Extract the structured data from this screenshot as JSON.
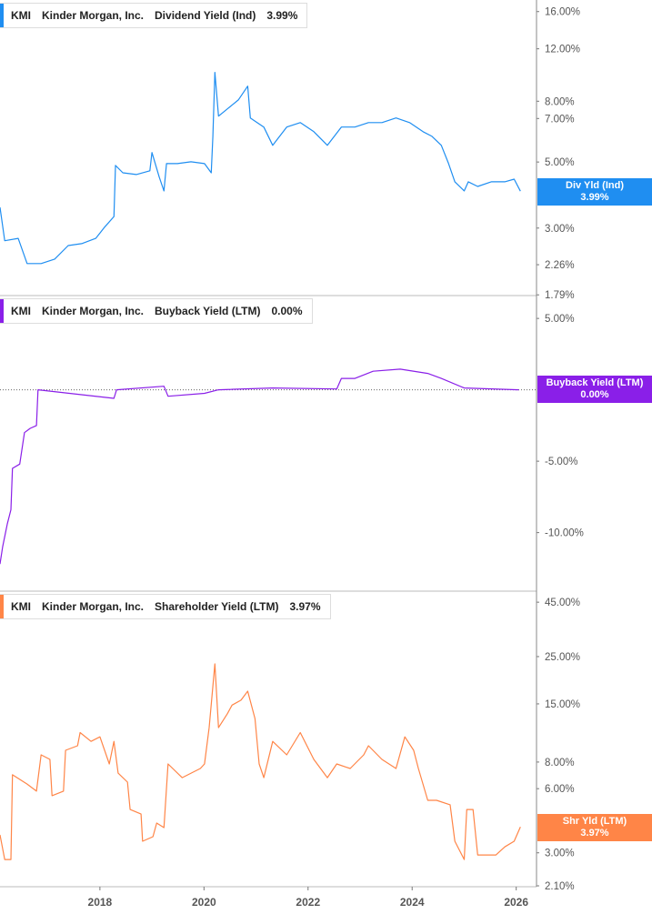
{
  "chart_data": [
    {
      "type": "line",
      "ticker": "KMI",
      "company": "Kinder Morgan, Inc.",
      "title": "Dividend Yield (Ind)",
      "current_value": "3.99%",
      "badge_label": "Div Yld (Ind)",
      "color": "#1f8ef1",
      "scale": "log",
      "ylim": [
        1.78,
        17.5
      ],
      "yticks": [
        16,
        12,
        8,
        7,
        5,
        3,
        2.26,
        1.79
      ],
      "ytick_labels": [
        "16.00%",
        "12.00%",
        "8.00%",
        "7.00%",
        "5.00%",
        "3.00%",
        "2.26%",
        "1.79%"
      ],
      "x": [
        2016.08,
        2016.17,
        2016.43,
        2016.6,
        2016.87,
        2017.13,
        2017.39,
        2017.65,
        2017.92,
        2018.09,
        2018.27,
        2018.3,
        2018.44,
        2018.7,
        2018.96,
        2019.0,
        2019.14,
        2019.23,
        2019.28,
        2019.49,
        2019.75,
        2020.01,
        2020.14,
        2020.17,
        2020.21,
        2020.28,
        2020.45,
        2020.66,
        2020.84,
        2020.89,
        2021.15,
        2021.32,
        2021.59,
        2021.85,
        2022.11,
        2022.37,
        2022.64,
        2022.9,
        2023.16,
        2023.42,
        2023.69,
        2023.95,
        2024.21,
        2024.38,
        2024.56,
        2024.7,
        2024.82,
        2025.0,
        2025.08,
        2025.26,
        2025.52,
        2025.78,
        2025.96,
        2026.08
      ],
      "values": [
        3.52,
        2.72,
        2.77,
        2.28,
        2.28,
        2.36,
        2.62,
        2.66,
        2.77,
        3.02,
        3.28,
        4.87,
        4.6,
        4.54,
        4.67,
        5.38,
        4.45,
        4.0,
        4.94,
        4.94,
        5.01,
        4.94,
        4.6,
        6.1,
        10.0,
        7.13,
        7.54,
        8.08,
        8.99,
        7.03,
        6.55,
        5.69,
        6.55,
        6.78,
        6.32,
        5.69,
        6.55,
        6.55,
        6.78,
        6.78,
        7.03,
        6.78,
        6.32,
        6.1,
        5.69,
        4.94,
        4.29,
        4.0,
        4.29,
        4.14,
        4.29,
        4.29,
        4.38,
        3.99
      ]
    },
    {
      "type": "line",
      "ticker": "KMI",
      "company": "Kinder Morgan, Inc.",
      "title": "Buyback Yield (LTM)",
      "current_value": "0.00%",
      "badge_label": "Buyback Yield (LTM)",
      "color": "#8a1fe8",
      "scale": "linear",
      "ylim": [
        -14.1,
        6.6
      ],
      "yticks": [
        5,
        -5,
        -10
      ],
      "ytick_labels": [
        "5.00%",
        "-5.00%",
        "-10.00%"
      ],
      "reference_line": 0,
      "x": [
        2016.08,
        2016.13,
        2016.22,
        2016.29,
        2016.32,
        2016.46,
        2016.55,
        2016.66,
        2016.78,
        2016.81,
        2018.27,
        2018.32,
        2019.23,
        2019.31,
        2020.01,
        2020.28,
        2021.32,
        2022.55,
        2022.64,
        2022.9,
        2023.25,
        2023.77,
        2024.3,
        2024.56,
        2025.0,
        2026.05
      ],
      "values": [
        -12.2,
        -11.0,
        -9.4,
        -8.4,
        -5.5,
        -5.2,
        -3.0,
        -2.7,
        -2.5,
        0.0,
        -0.6,
        0.0,
        0.25,
        -0.45,
        -0.25,
        0.0,
        0.13,
        0.06,
        0.8,
        0.8,
        1.3,
        1.45,
        1.15,
        0.8,
        0.13,
        0.0
      ]
    },
    {
      "type": "line",
      "ticker": "KMI",
      "company": "Kinder Morgan, Inc.",
      "title": "Shareholder Yield (LTM)",
      "current_value": "3.97%",
      "badge_label": "Shr Yld (LTM)",
      "color": "#ff8547",
      "scale": "log",
      "ylim": [
        2.08,
        50.7
      ],
      "yticks": [
        45,
        25,
        15,
        8,
        6,
        3,
        2.1
      ],
      "ytick_labels": [
        "45.00%",
        "25.00%",
        "15.00%",
        "8.00%",
        "6.00%",
        "3.00%",
        "2.10%"
      ],
      "x": [
        2016.08,
        2016.17,
        2016.29,
        2016.32,
        2016.6,
        2016.78,
        2016.87,
        2017.04,
        2017.08,
        2017.3,
        2017.34,
        2017.57,
        2017.62,
        2017.83,
        2018.0,
        2018.18,
        2018.27,
        2018.35,
        2018.53,
        2018.58,
        2018.79,
        2018.82,
        2019.02,
        2019.09,
        2019.23,
        2019.31,
        2019.58,
        2019.93,
        2020.01,
        2020.1,
        2020.21,
        2020.28,
        2020.45,
        2020.54,
        2020.71,
        2020.84,
        2020.98,
        2021.06,
        2021.15,
        2021.32,
        2021.59,
        2021.85,
        2022.11,
        2022.37,
        2022.55,
        2022.81,
        2023.07,
        2023.16,
        2023.42,
        2023.69,
        2023.86,
        2024.03,
        2024.12,
        2024.3,
        2024.47,
        2024.73,
        2024.82,
        2025.0,
        2025.05,
        2025.17,
        2025.26,
        2025.61,
        2025.78,
        2025.96,
        2026.08
      ],
      "values": [
        3.64,
        2.79,
        2.79,
        6.97,
        6.31,
        5.84,
        8.65,
        8.23,
        5.56,
        5.84,
        9.08,
        9.54,
        11.0,
        10.0,
        10.5,
        7.84,
        10.0,
        7.1,
        6.44,
        4.79,
        4.56,
        3.4,
        3.57,
        4.14,
        3.94,
        7.84,
        6.76,
        7.46,
        7.84,
        11.6,
        23.1,
        11.6,
        13.5,
        14.8,
        15.6,
        17.2,
        12.8,
        7.84,
        6.76,
        10.0,
        8.65,
        11.0,
        8.23,
        6.76,
        7.84,
        7.46,
        8.65,
        9.54,
        8.23,
        7.46,
        10.5,
        9.08,
        7.46,
        5.29,
        5.29,
        5.04,
        3.4,
        2.79,
        4.79,
        4.79,
        2.93,
        2.93,
        3.2,
        3.4,
        3.97
      ]
    }
  ],
  "x_axis": {
    "ticks": [
      2018,
      2020,
      2022,
      2024,
      2026
    ],
    "tick_labels": [
      "2018",
      "2020",
      "2022",
      "2024",
      "2026"
    ],
    "xlim": [
      2016.08,
      2026.39
    ]
  }
}
